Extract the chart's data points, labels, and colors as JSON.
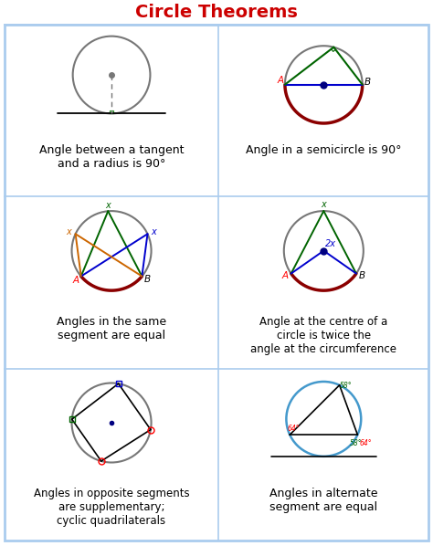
{
  "title": "Circle Theorems",
  "title_color": "#cc0000",
  "title_fontsize": 14,
  "background_color": "#ffffff",
  "border_color": "#aaccee",
  "cell_texts": [
    "Angle between a tangent\nand a radius is 90°",
    "Angle in a semicircle is 90°",
    "Angles in the same\nsegment are equal",
    "Angle at the centre of a\ncircle is twice the\nangle at the circumference",
    "Angles in opposite segments\nare supplementary;\ncyclic quadrilaterals",
    "Angles in alternate\nsegment are equal"
  ],
  "text_fontsize": 9,
  "dark_red": "#8b0000",
  "green": "#006400",
  "blue": "#0000cd",
  "orange": "#cc6600",
  "light_blue": "#4499cc",
  "gray": "#777777",
  "navy": "#000080"
}
